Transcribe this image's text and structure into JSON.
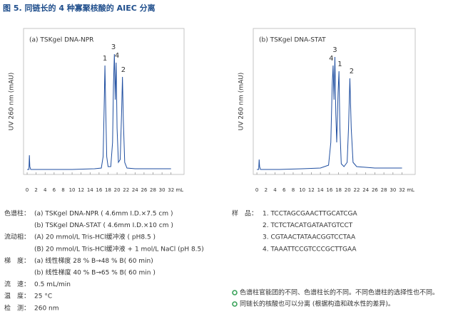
{
  "title": "图 5. 同链长的 4 种寡聚核酸的 AIEC 分离",
  "chart_data": [
    {
      "type": "line",
      "title": "(a) TSKgel DNA-NPR",
      "y_label": "UV 260 nm (mAU)",
      "x_unit": "mL",
      "xlim": [
        -0.8,
        34.9
      ],
      "ylim": [
        -2.5,
        100
      ],
      "xticks": [
        0,
        2,
        4,
        6,
        8,
        10,
        12,
        14,
        16,
        18,
        20,
        22,
        24,
        26,
        28,
        30,
        32
      ],
      "series": [
        {
          "color": "#1f4ea0",
          "x": [
            0,
            0.4,
            0.5,
            0.6,
            0.8,
            2,
            5,
            10,
            15,
            16.5,
            16.9,
            17.1,
            17.3,
            17.5,
            17.7,
            18.0,
            18.6,
            19.0,
            19.2,
            19.4,
            19.6,
            19.8,
            20.0,
            20.3,
            20.7,
            21.0,
            21.2,
            21.4,
            21.7,
            22.2,
            24,
            28,
            32
          ],
          "y": [
            1,
            1,
            11,
            3,
            1,
            1,
            1,
            1,
            1.5,
            2,
            10,
            40,
            74,
            40,
            10,
            3,
            3,
            20,
            60,
            82,
            50,
            76,
            30,
            6,
            8,
            40,
            66,
            35,
            6,
            2,
            1.5,
            1.5,
            1.5
          ]
        }
      ],
      "annotations": [
        {
          "text": "1",
          "x": 17.3,
          "y": 74
        },
        {
          "text": "3",
          "x": 19.2,
          "y": 82
        },
        {
          "text": "4",
          "x": 20.0,
          "y": 76
        },
        {
          "text": "2",
          "x": 21.4,
          "y": 66
        }
      ]
    },
    {
      "type": "line",
      "title": "(b) TSKgel DNA-STAT",
      "y_label": "UV 260 nm (mAU)",
      "x_unit": "mL",
      "xlim": [
        -0.8,
        34.9
      ],
      "ylim": [
        -2.5,
        100
      ],
      "xticks": [
        0,
        2,
        4,
        6,
        8,
        10,
        12,
        14,
        16,
        18,
        20,
        22,
        24,
        26,
        28,
        30,
        32
      ],
      "series": [
        {
          "color": "#1f4ea0",
          "x": [
            0,
            0.4,
            0.5,
            0.6,
            0.8,
            2,
            5,
            10,
            14,
            15.8,
            16.3,
            16.6,
            16.8,
            17.0,
            17.2,
            17.4,
            17.6,
            17.9,
            18.1,
            18.3,
            18.6,
            19.2,
            19.9,
            20.2,
            20.5,
            20.8,
            21.2,
            22,
            26,
            32
          ],
          "y": [
            1,
            1,
            8,
            3,
            1,
            1,
            1,
            1.5,
            2,
            4,
            20,
            60,
            74,
            50,
            80,
            40,
            20,
            55,
            70,
            30,
            5,
            3,
            6,
            30,
            65,
            30,
            6,
            3,
            2,
            2
          ]
        }
      ],
      "annotations": [
        {
          "text": "4",
          "x": 16.4,
          "y": 74
        },
        {
          "text": "3",
          "x": 17.2,
          "y": 80
        },
        {
          "text": "1",
          "x": 18.3,
          "y": 70
        },
        {
          "text": "2",
          "x": 20.9,
          "y": 65
        }
      ]
    }
  ],
  "conditions": [
    {
      "label": "色谱柱：",
      "lines": [
        "(a) TSKgel DNA-NPR ( 4.6mm I.D.×7.5 cm )",
        "(b) TSKgel DNA-STAT ( 4.6mm I.D.×10 cm )"
      ]
    },
    {
      "label": "流动相：",
      "lines": [
        "(A) 20 mmol/L Tris-HCl缓冲液 ( pH8.5 )",
        "(B) 20 mmol/L Tris-HCl缓冲液 + 1 mol/L NaCl (pH 8.5)"
      ]
    },
    {
      "label": "梯　度：",
      "lines": [
        "(a) 线性梯度 28 % B→48 % B( 60 min)",
        "(b) 线性梯度 40 % B→65 % B( 60 min )"
      ]
    },
    {
      "label": "流　速：",
      "lines": [
        "0.5 mL/min"
      ]
    },
    {
      "label": "温　度：",
      "lines": [
        "25 °C"
      ]
    },
    {
      "label": "检　测：",
      "lines": [
        "260 nm"
      ]
    }
  ],
  "sample": {
    "label": "样　品：",
    "items": [
      "1.  TCCTAGCGAACTTGCATCGA",
      "2.  TCTCTACATGATAATGTCCT",
      "3.  CGTAACTATAACGGTCCTAA",
      "4.  TAAATTCCGTCCCGCTTGAA"
    ]
  },
  "notes": [
    "色谱柱官能团的不同、色谱柱长的不同。不同色谱柱的选择性也不同。",
    "同链长的核酸也可以分离 (根据构造和疏水性的差异)。"
  ]
}
